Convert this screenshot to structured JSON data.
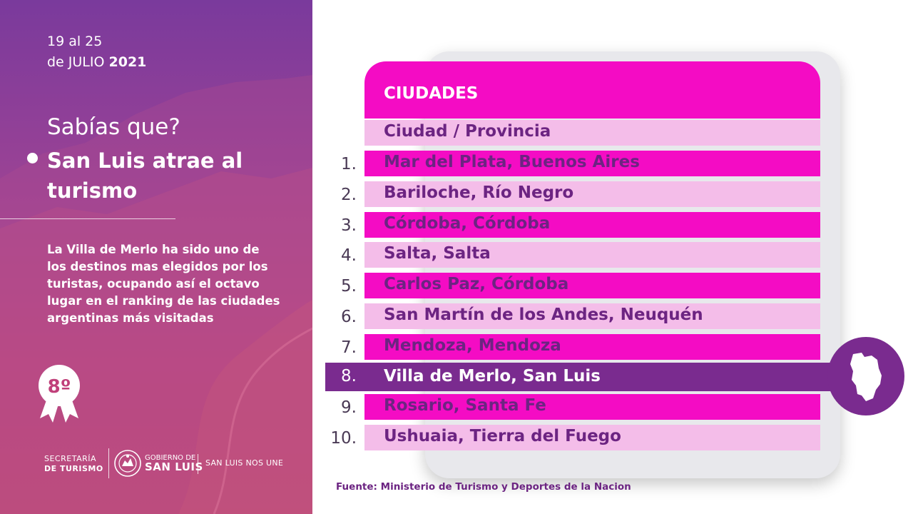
{
  "left_panel": {
    "date_line1": "19 al 25",
    "date_line2_prefix": "de JULIO",
    "date_year": "2021",
    "question": "Sabías que?",
    "headline": "San Luis atrae al turismo",
    "paragraph": "La Villa de Merlo ha sido uno de los destinos mas elegidos por los turistas, ocupando así el octavo lugar en el ranking de las ciudades argentinas más visitadas",
    "badge_text": "8º",
    "footer": {
      "secretaria_line1": "SECRETARÍA",
      "secretaria_line2": "DE TURISMO",
      "gobierno_line1": "GOBIERNO DE",
      "gobierno_line2": "SAN LUIS",
      "slogan": "SAN LUIS NOS UNE"
    }
  },
  "table": {
    "title": "CIUDADES",
    "column_header": "Ciudad / Provincia",
    "rows": [
      {
        "num": "1.",
        "label": "Mar del Plata, Buenos Aires"
      },
      {
        "num": "2.",
        "label": "Bariloche, Río Negro"
      },
      {
        "num": "3.",
        "label": "Córdoba, Córdoba"
      },
      {
        "num": "4.",
        "label": "Salta, Salta"
      },
      {
        "num": "5.",
        "label": "Carlos Paz, Córdoba"
      },
      {
        "num": "6.",
        "label": "San Martín de los Andes, Neuquén"
      },
      {
        "num": "7.",
        "label": "Mendoza, Mendoza"
      },
      {
        "num": "8.",
        "label": "Villa de Merlo, San Luis"
      },
      {
        "num": "9.",
        "label": "Rosario, Santa Fe"
      },
      {
        "num": "10.",
        "label": "Ushuaia, Tierra del Fuego"
      }
    ],
    "highlighted_row": 8,
    "source": "Fuente: Ministerio de Turismo y Deportes de la Nacion"
  },
  "colors": {
    "magenta": "#f40cc4",
    "light_pink": "#f4bde9",
    "purple": "#7a2b8f",
    "text_purple": "#6c2482"
  },
  "icons": {
    "bullet": "white-dot",
    "badge": "rosette-award-icon",
    "seal": "san-luis-seal-icon",
    "map": "san-luis-map-icon"
  }
}
